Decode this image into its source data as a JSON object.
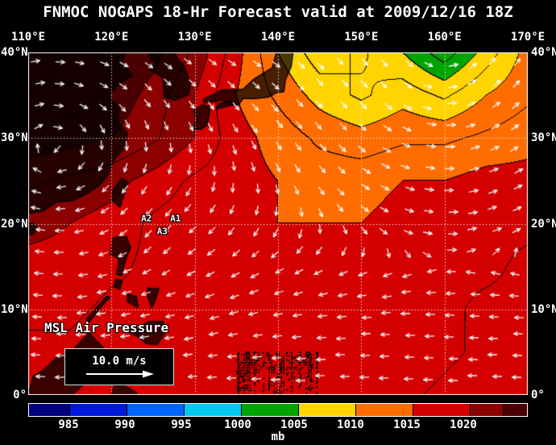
{
  "header": {
    "title": "FNMOC NOGAPS 18-Hr Forecast valid at 2009/12/16 18Z"
  },
  "axes": {
    "lon_ticks": [
      {
        "label": "110°E",
        "lon": 110
      },
      {
        "label": "120°E",
        "lon": 120
      },
      {
        "label": "130°E",
        "lon": 130
      },
      {
        "label": "140°E",
        "lon": 140
      },
      {
        "label": "150°E",
        "lon": 150
      },
      {
        "label": "160°E",
        "lon": 160
      },
      {
        "label": "170°E",
        "lon": 170
      }
    ],
    "lat_ticks": [
      {
        "label": "40°N",
        "lat": 40
      },
      {
        "label": "30°N",
        "lat": 30
      },
      {
        "label": "20°N",
        "lat": 20
      },
      {
        "label": "10°N",
        "lat": 10
      },
      {
        "label": "0°",
        "lat": 0
      }
    ]
  },
  "overlays": {
    "field_label": "MSL Air Pressure",
    "wind_scale": {
      "label": "10.0 m/s"
    },
    "storm_labels": [
      {
        "text": "A2",
        "lon": 124.2,
        "lat": 20.6
      },
      {
        "text": "A1",
        "lon": 127.7,
        "lat": 20.6
      },
      {
        "text": "A3",
        "lon": 126.1,
        "lat": 19.1
      }
    ]
  },
  "colorbar": {
    "units": "mb",
    "ticks": [
      985,
      990,
      995,
      1000,
      1005,
      1010,
      1015,
      1020
    ],
    "segments": [
      {
        "upto": 985,
        "color": "#000080"
      },
      {
        "upto": 990,
        "color": "#0018dc"
      },
      {
        "upto": 995,
        "color": "#0064ff"
      },
      {
        "upto": 1000,
        "color": "#00c8f0"
      },
      {
        "upto": 1005,
        "color": "#00a400"
      },
      {
        "upto": 1010,
        "color": "#ffd400"
      },
      {
        "upto": 1015,
        "color": "#ff6c00"
      },
      {
        "upto": 1020,
        "color": "#d40000"
      },
      {
        "upto": 1025,
        "color": "#8c0000"
      },
      {
        "upto": 9999,
        "color": "#4a0000"
      }
    ]
  },
  "chart_data": {
    "type": "heatmap",
    "title": "MSL Air Pressure",
    "units": "mb",
    "lon_range": [
      110,
      170
    ],
    "lat_range": [
      0,
      40
    ],
    "fill_interval_mb": 5,
    "contour_interval_mb": 2.5,
    "grid": {
      "lons": [
        110,
        115,
        120,
        125,
        130,
        135,
        140,
        145,
        150,
        155,
        160,
        165,
        170
      ],
      "lats": [
        40,
        35,
        30,
        25,
        20,
        15,
        10,
        5,
        0
      ],
      "pressure_mb": [
        [
          1031,
          1030,
          1028,
          1026,
          1022,
          1016,
          1010,
          1006,
          1008,
          1005,
          1001,
          1006,
          1011
        ],
        [
          1030,
          1029,
          1027,
          1024,
          1020,
          1015,
          1012,
          1009,
          1007,
          1009,
          1007,
          1010,
          1012
        ],
        [
          1027,
          1026,
          1025,
          1023,
          1020,
          1016,
          1014,
          1012,
          1011,
          1012,
          1012,
          1013,
          1014
        ],
        [
          1023,
          1022,
          1021,
          1019,
          1017,
          1016,
          1015,
          1014,
          1014,
          1015,
          1015,
          1016,
          1016
        ],
        [
          1021,
          1020,
          1019,
          1017,
          1016,
          1016,
          1015,
          1015,
          1015,
          1016,
          1016,
          1017,
          1017
        ],
        [
          1019,
          1019,
          1018,
          1017,
          1016,
          1016,
          1016,
          1016,
          1016,
          1016,
          1017,
          1017,
          1018
        ],
        [
          1018,
          1018,
          1017,
          1017,
          1016,
          1016,
          1016,
          1016,
          1016,
          1016,
          1017,
          1018,
          1018
        ],
        [
          1017,
          1017,
          1016,
          1016,
          1016,
          1015,
          1015,
          1015,
          1016,
          1016,
          1017,
          1018,
          1019
        ],
        [
          1016,
          1016,
          1016,
          1016,
          1015,
          1015,
          1015,
          1015,
          1016,
          1017,
          1018,
          1019,
          1020
        ]
      ]
    },
    "wind": {
      "reference_speed_label": "10.0 m/s",
      "background_u_per_lat": 0.55,
      "background_lat0": 20,
      "vortices": [
        {
          "kind": "anticyclone",
          "lon": 113,
          "lat": 33,
          "strength": 1.3,
          "radius": 20
        },
        {
          "kind": "cyclone",
          "lon": 160,
          "lat": 37,
          "strength": 1.8,
          "radius": 13
        },
        {
          "kind": "cyclone",
          "lon": 127,
          "lat": 20,
          "strength": 0.9,
          "radius": 5
        }
      ]
    },
    "coastlines": [
      {
        "name": "china",
        "closed": true,
        "pts": [
          [
            110,
            40
          ],
          [
            110,
            21.2
          ],
          [
            111.8,
            21.5
          ],
          [
            113.4,
            22.5
          ],
          [
            115.4,
            22.7
          ],
          [
            117,
            23.5
          ],
          [
            118.6,
            24.5
          ],
          [
            119.6,
            25.7
          ],
          [
            120.1,
            27.2
          ],
          [
            121.6,
            28.9
          ],
          [
            121.9,
            30.6
          ],
          [
            120.8,
            32
          ],
          [
            120.9,
            33.6
          ],
          [
            119.6,
            34.9
          ],
          [
            120.9,
            36.3
          ],
          [
            122.5,
            37.3
          ],
          [
            121.3,
            38.9
          ],
          [
            121.7,
            40
          ]
        ]
      },
      {
        "name": "korea",
        "closed": true,
        "pts": [
          [
            124.4,
            40
          ],
          [
            124.8,
            39.1
          ],
          [
            125.4,
            38.7
          ],
          [
            124.7,
            38
          ],
          [
            126.2,
            37
          ],
          [
            126.3,
            34.8
          ],
          [
            127.6,
            34.4
          ],
          [
            129.3,
            35.1
          ],
          [
            129.5,
            36.4
          ],
          [
            128.8,
            38.3
          ],
          [
            128,
            39.2
          ],
          [
            127.6,
            40
          ]
        ]
      },
      {
        "name": "kyushu",
        "closed": true,
        "pts": [
          [
            129.7,
            31.1
          ],
          [
            130.3,
            32.2
          ],
          [
            129.9,
            33.2
          ],
          [
            130.9,
            33.9
          ],
          [
            131.9,
            33.6
          ],
          [
            131.5,
            31.5
          ],
          [
            130.7,
            31
          ]
        ]
      },
      {
        "name": "shikoku",
        "closed": true,
        "pts": [
          [
            132.7,
            33.4
          ],
          [
            134.6,
            33.9
          ],
          [
            134.2,
            34.3
          ],
          [
            132.9,
            34
          ]
        ]
      },
      {
        "name": "honshu",
        "closed": true,
        "pts": [
          [
            131.1,
            34.1
          ],
          [
            133.1,
            34.4
          ],
          [
            135.2,
            33.8
          ],
          [
            135.8,
            34.6
          ],
          [
            137.3,
            34.6
          ],
          [
            138.9,
            34.8
          ],
          [
            139.8,
            35.3
          ],
          [
            140.7,
            35.4
          ],
          [
            140.9,
            36.8
          ],
          [
            141.6,
            38.4
          ],
          [
            141.8,
            40
          ],
          [
            139.8,
            40
          ],
          [
            139.3,
            38.2
          ],
          [
            137.1,
            36.9
          ],
          [
            135.8,
            35.7
          ],
          [
            133.3,
            35.6
          ],
          [
            131,
            34.5
          ]
        ]
      },
      {
        "name": "taiwan",
        "closed": true,
        "pts": [
          [
            120.1,
            22.7
          ],
          [
            121,
            21.9
          ],
          [
            122,
            24.8
          ],
          [
            121.3,
            25.3
          ],
          [
            120.2,
            24
          ]
        ]
      },
      {
        "name": "hainan",
        "closed": true,
        "pts": [
          [
            110,
            20.1
          ],
          [
            110.7,
            20
          ],
          [
            111.1,
            19.5
          ],
          [
            110.5,
            18.7
          ],
          [
            110,
            18.8
          ]
        ]
      },
      {
        "name": "luzon",
        "closed": true,
        "pts": [
          [
            119.9,
            16.4
          ],
          [
            120.2,
            18.4
          ],
          [
            121.8,
            18.5
          ],
          [
            122.3,
            17.2
          ],
          [
            121.7,
            15.8
          ],
          [
            121.2,
            13.9
          ],
          [
            120.6,
            14.1
          ],
          [
            120.9,
            15.9
          ]
        ]
      },
      {
        "name": "mindoro",
        "closed": true,
        "pts": [
          [
            120.5,
            13.5
          ],
          [
            121.3,
            13.4
          ],
          [
            121,
            12.3
          ],
          [
            120.3,
            12.7
          ]
        ]
      },
      {
        "name": "samar-leyte",
        "closed": true,
        "pts": [
          [
            124.3,
            12.5
          ],
          [
            125.7,
            12.4
          ],
          [
            125.2,
            10.9
          ],
          [
            124.8,
            10.2
          ],
          [
            124.4,
            11.4
          ]
        ]
      },
      {
        "name": "panay-negros",
        "closed": true,
        "pts": [
          [
            121.9,
            11.8
          ],
          [
            123,
            11.5
          ],
          [
            123.2,
            10.2
          ],
          [
            122.3,
            10.7
          ],
          [
            121.9,
            10.9
          ]
        ]
      },
      {
        "name": "palawan",
        "closed": true,
        "pts": [
          [
            117.2,
            8.4
          ],
          [
            119.3,
            10.9
          ],
          [
            119.8,
            11.4
          ],
          [
            119.4,
            11.5
          ],
          [
            117,
            8.9
          ]
        ]
      },
      {
        "name": "mindanao",
        "closed": true,
        "pts": [
          [
            122.1,
            7.3
          ],
          [
            123.5,
            7.8
          ],
          [
            124.4,
            8.6
          ],
          [
            126.2,
            8.6
          ],
          [
            126.5,
            7.3
          ],
          [
            125.5,
            5.9
          ],
          [
            124.2,
            6
          ],
          [
            123.2,
            6.8
          ]
        ]
      },
      {
        "name": "borneo",
        "closed": true,
        "pts": [
          [
            110,
            0
          ],
          [
            110.6,
            2.2
          ],
          [
            111.8,
            2.9
          ],
          [
            113.3,
            4.3
          ],
          [
            115.4,
            5.3
          ],
          [
            117.3,
            7.3
          ],
          [
            119.1,
            5.4
          ],
          [
            118,
            3.1
          ],
          [
            116.6,
            1.2
          ],
          [
            115.3,
            0
          ]
        ]
      },
      {
        "name": "sulawesi",
        "closed": true,
        "pts": [
          [
            120,
            0
          ],
          [
            120.3,
            1
          ],
          [
            121.4,
            1.2
          ],
          [
            122.8,
            0.4
          ],
          [
            123.2,
            0
          ]
        ]
      }
    ]
  }
}
